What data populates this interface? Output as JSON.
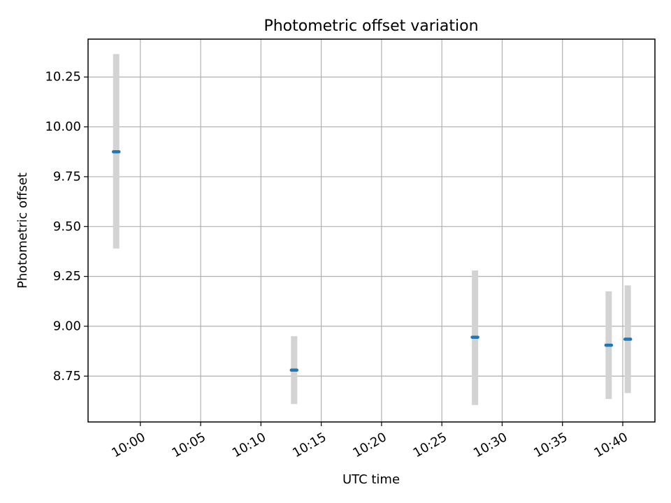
{
  "chart_data": {
    "type": "scatter",
    "title": "Photometric offset variation",
    "xlabel": "UTC time",
    "ylabel": "Photometric offset",
    "grid": true,
    "xlim": [
      "09:55:40",
      "10:42:40"
    ],
    "ylim": [
      8.52,
      10.44
    ],
    "x_ticks": [
      "10:00",
      "10:05",
      "10:10",
      "10:15",
      "10:20",
      "10:25",
      "10:30",
      "10:35",
      "10:40"
    ],
    "y_ticks": [
      "8.75",
      "9.00",
      "9.25",
      "9.50",
      "9.75",
      "10.00",
      "10.25"
    ],
    "series": [
      {
        "points": [
          {
            "x": "09:58:00",
            "y": 9.875,
            "ylow": 9.39,
            "yhigh": 10.365
          },
          {
            "x": "10:12:45",
            "y": 8.78,
            "ylow": 8.61,
            "yhigh": 8.95
          },
          {
            "x": "10:27:45",
            "y": 8.945,
            "ylow": 8.605,
            "yhigh": 9.28
          },
          {
            "x": "10:38:50",
            "y": 8.905,
            "ylow": 8.635,
            "yhigh": 9.175
          },
          {
            "x": "10:40:25",
            "y": 8.935,
            "ylow": 8.665,
            "yhigh": 9.205
          }
        ],
        "marker_color": "#1f77b4",
        "errorbar_color": "#d3d3d3"
      }
    ]
  }
}
